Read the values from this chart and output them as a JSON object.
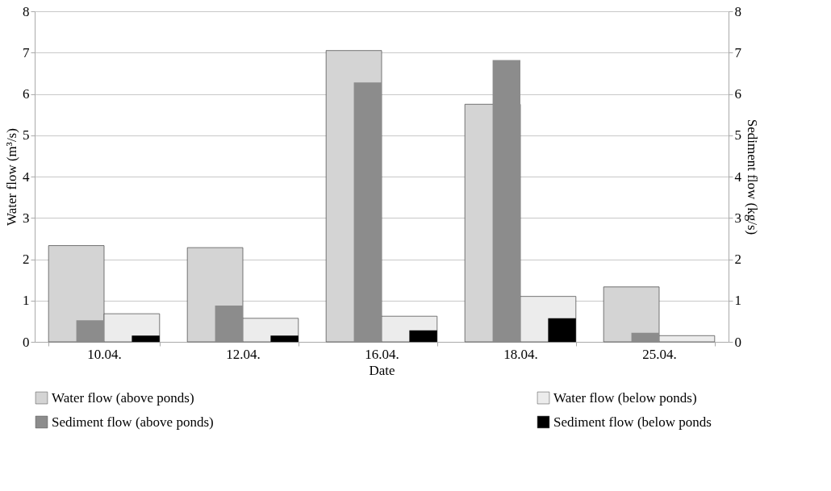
{
  "chart_data": {
    "type": "bar",
    "xlabel": "Date",
    "ylabel": "Water flow (m³/s)",
    "y2label": "Sediment flow (kg/s)",
    "categories": [
      "10.04.",
      "12.04.",
      "16.04.",
      "18.04.",
      "25.04."
    ],
    "series": [
      {
        "name": "Water flow (above ponds)",
        "color": "#d4d4d4",
        "values": [
          2.33,
          2.28,
          7.05,
          5.75,
          1.33
        ]
      },
      {
        "name": "Water flow (below ponds)",
        "color": "#ececec",
        "values": [
          0.68,
          0.57,
          0.62,
          1.1,
          0.15
        ]
      },
      {
        "name": "Sediment flow (above ponds)",
        "color": "#8c8c8c",
        "axis": "y2",
        "values": [
          0.52,
          0.88,
          6.28,
          6.82,
          0.22
        ]
      },
      {
        "name": "Sediment flow (below ponds",
        "color": "#000000",
        "axis": "y2",
        "values": [
          0.15,
          0.15,
          0.28,
          0.57,
          0.0
        ]
      }
    ],
    "ylim": [
      0,
      8
    ],
    "yticks": [
      0,
      1,
      2,
      3,
      4,
      5,
      6,
      7,
      8
    ],
    "y2lim": [
      0,
      8
    ],
    "y2ticks": [
      0,
      1,
      2,
      3,
      4,
      5,
      6,
      7,
      8
    ],
    "grid": "y",
    "legend": "bottom"
  }
}
